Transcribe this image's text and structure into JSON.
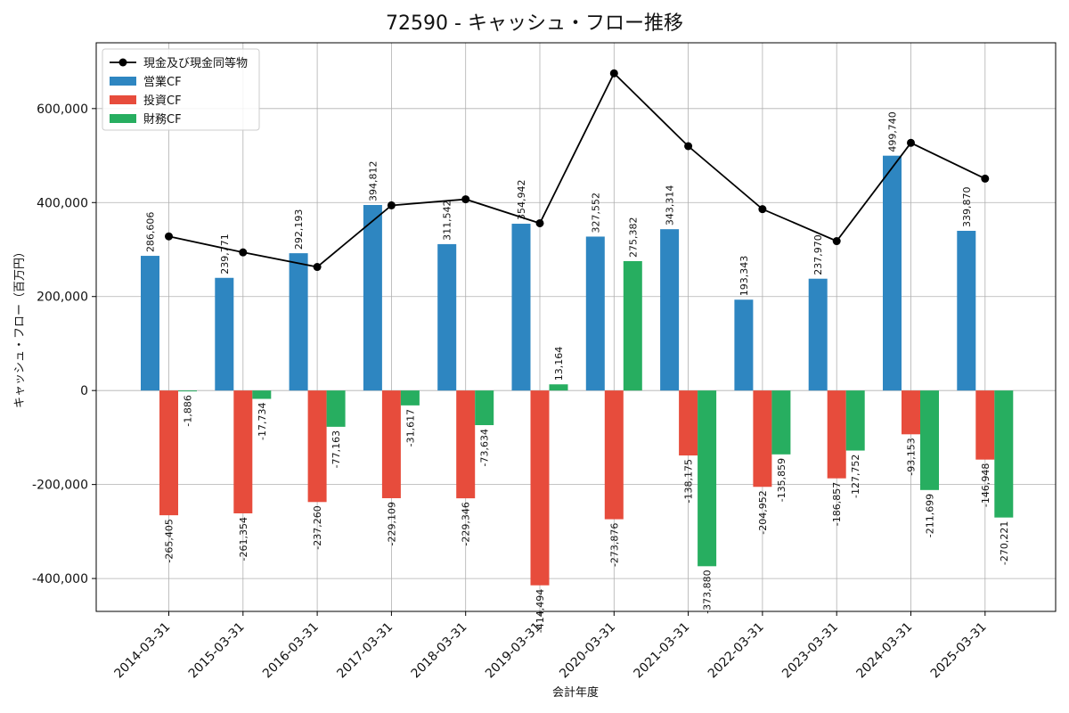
{
  "chart_data": {
    "type": "bar",
    "title": "72590 - キャッシュ・フロー推移",
    "xlabel": "会計年度",
    "ylabel": "キャッシュ・フロー（百万円）",
    "ylim": [
      -470000,
      740000
    ],
    "yticks": [
      -400000,
      -200000,
      0,
      200000,
      400000,
      600000
    ],
    "ytick_labels": [
      "-400,000",
      "-200,000",
      "0",
      "200,000",
      "400,000",
      "600,000"
    ],
    "grid": true,
    "legend_position": "top-left",
    "categories": [
      "2014-03-31",
      "2015-03-31",
      "2016-03-31",
      "2017-03-31",
      "2018-03-31",
      "2019-03-31",
      "2020-03-31",
      "2021-03-31",
      "2022-03-31",
      "2023-03-31",
      "2024-03-31",
      "2025-03-31"
    ],
    "series": [
      {
        "name": "営業CF",
        "kind": "bar",
        "color": "#2e86c1",
        "values": [
          286606,
          239771,
          292193,
          394812,
          311542,
          354942,
          327552,
          343314,
          193343,
          237970,
          499740,
          339870
        ],
        "labels": [
          "286,606",
          "239,771",
          "292,193",
          "394,812",
          "311,542",
          "354,942",
          "327,552",
          "343,314",
          "193,343",
          "237,970",
          "499,740",
          "339,870"
        ]
      },
      {
        "name": "投資CF",
        "kind": "bar",
        "color": "#e74c3c",
        "values": [
          -265405,
          -261354,
          -237260,
          -229109,
          -229346,
          -414494,
          -273876,
          -138175,
          -204952,
          -186857,
          -93153,
          -146948
        ],
        "labels": [
          "-265,405",
          "-261,354",
          "-237,260",
          "-229,109",
          "-229,346",
          "-414,494",
          "-273,876",
          "-138,175",
          "-204,952",
          "-186,857",
          "-93,153",
          "-146,948"
        ]
      },
      {
        "name": "財務CF",
        "kind": "bar",
        "color": "#27ae60",
        "values": [
          -1886,
          -17734,
          -77163,
          -31617,
          -73634,
          13164,
          275382,
          -373880,
          -135859,
          -127752,
          -211699,
          -270221
        ],
        "labels": [
          "-1,886",
          "-17,734",
          "-77,163",
          "-31,617",
          "-73,634",
          "13,164",
          "275,382",
          "-373,880",
          "-135,859",
          "-127,752",
          "-211,699",
          "-270,221"
        ]
      },
      {
        "name": "現金及び現金同等物",
        "kind": "line",
        "color": "#000000",
        "values": [
          328000,
          294000,
          263000,
          394000,
          407000,
          356000,
          675000,
          520000,
          386000,
          318000,
          527000,
          451000
        ]
      }
    ]
  }
}
